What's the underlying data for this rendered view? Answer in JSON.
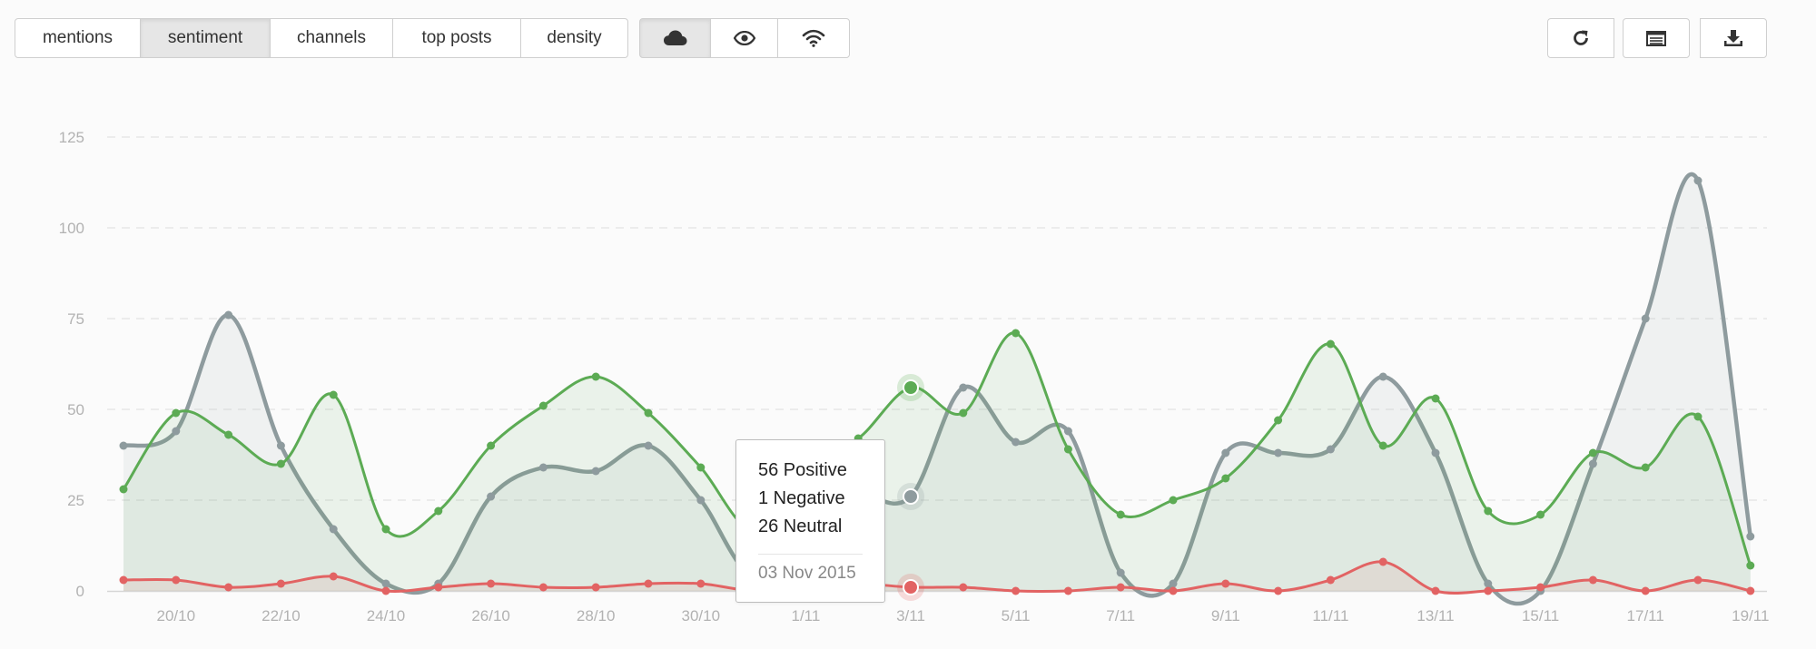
{
  "tabs": [
    {
      "label": "mentions",
      "active": false
    },
    {
      "label": "sentiment",
      "active": true
    },
    {
      "label": "channels",
      "active": false
    },
    {
      "label": "top posts",
      "active": false
    },
    {
      "label": "density",
      "active": false
    }
  ],
  "view_icons": [
    {
      "icon": "cloud-icon",
      "active": true
    },
    {
      "icon": "eye-icon",
      "active": false
    },
    {
      "icon": "wifi-icon",
      "active": false
    }
  ],
  "actions": [
    {
      "icon": "refresh-icon"
    },
    {
      "icon": "table-icon"
    },
    {
      "icon": "download-icon"
    }
  ],
  "tooltip": {
    "positive": "56 Positive",
    "negative": "1 Negative",
    "neutral": "26 Neutral",
    "date": "03 Nov 2015"
  },
  "chart_data": {
    "type": "area",
    "x": [
      "2015-10-19",
      "2015-10-20",
      "2015-10-21",
      "2015-10-22",
      "2015-10-23",
      "2015-10-24",
      "2015-10-25",
      "2015-10-26",
      "2015-10-27",
      "2015-10-28",
      "2015-10-29",
      "2015-10-30",
      "2015-10-31",
      "2015-11-01",
      "2015-11-02",
      "2015-11-03",
      "2015-11-04",
      "2015-11-05",
      "2015-11-06",
      "2015-11-07",
      "2015-11-08",
      "2015-11-09",
      "2015-11-10",
      "2015-11-11",
      "2015-11-12",
      "2015-11-13",
      "2015-11-14",
      "2015-11-15",
      "2015-11-16",
      "2015-11-17",
      "2015-11-18",
      "2015-11-19"
    ],
    "x_tick_labels": [
      "20/10",
      "22/10",
      "24/10",
      "26/10",
      "28/10",
      "30/10",
      "1/11",
      "3/11",
      "5/11",
      "7/11",
      "9/11",
      "11/11",
      "13/11",
      "15/11",
      "17/11",
      "19/11"
    ],
    "x_tick_dates": [
      "2015-10-20",
      "2015-10-22",
      "2015-10-24",
      "2015-10-26",
      "2015-10-28",
      "2015-10-30",
      "2015-11-01",
      "2015-11-03",
      "2015-11-05",
      "2015-11-07",
      "2015-11-09",
      "2015-11-11",
      "2015-11-13",
      "2015-11-15",
      "2015-11-17",
      "2015-11-19"
    ],
    "y_ticks": [
      0,
      25,
      50,
      75,
      100,
      125
    ],
    "ylim": [
      0,
      125
    ],
    "grid": true,
    "highlight_date": "2015-11-03",
    "series": [
      {
        "color": "#8e9b9e",
        "values": [
          40,
          44,
          76,
          40,
          17,
          2,
          2,
          26,
          34,
          33,
          40,
          25,
          5,
          27,
          27,
          26,
          56,
          41,
          44,
          5,
          2,
          38,
          38,
          39,
          59,
          38,
          2,
          0,
          35,
          75,
          113,
          15
        ]
      },
      {
        "color": "#5cab54",
        "values": [
          28,
          49,
          43,
          35,
          54,
          17,
          22,
          40,
          51,
          59,
          49,
          34,
          17,
          35,
          42,
          56,
          49,
          71,
          39,
          21,
          25,
          31,
          47,
          68,
          40,
          53,
          22,
          21,
          38,
          34,
          48,
          7
        ]
      },
      {
        "color": "#e26363",
        "values": [
          3,
          3,
          1,
          2,
          4,
          0,
          1,
          2,
          1,
          1,
          2,
          2,
          0,
          1,
          2,
          1,
          1,
          0,
          0,
          1,
          0,
          2,
          0,
          3,
          8,
          0,
          0,
          1,
          3,
          0,
          3,
          0
        ]
      }
    ]
  }
}
